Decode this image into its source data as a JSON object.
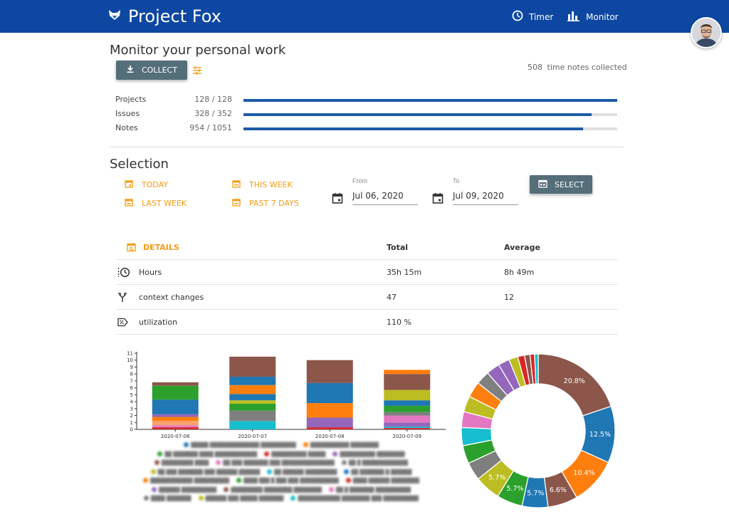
{
  "app": {
    "title": "Project Fox"
  },
  "nav": {
    "timer": "Timer",
    "monitor": "Monitor"
  },
  "monitor": {
    "heading": "Monitor your personal work",
    "collect_label": "COLLECT",
    "collected_count": "508",
    "collected_text": "time notes collected",
    "progress": [
      {
        "label": "Projects",
        "count": "128 / 128",
        "fraction": 1.0
      },
      {
        "label": "Issues",
        "count": "328 / 352",
        "fraction": 0.932
      },
      {
        "label": "Notes",
        "count": "954 / 1051",
        "fraction": 0.908
      }
    ]
  },
  "selection": {
    "heading": "Selection",
    "today": "TODAY",
    "last_week": "LAST WEEK",
    "this_week": "THIS WEEK",
    "past_7_days": "PAST 7 DAYS",
    "from_label": "From",
    "from_value": "Jul 06, 2020",
    "to_label": "To",
    "to_value": "Jul 09, 2020",
    "select_label": "SELECT"
  },
  "details": {
    "header_label": "DETAILS",
    "total_header": "Total",
    "average_header": "Average",
    "rows": [
      {
        "name": "Hours",
        "total": "35h 15m",
        "average": "8h 49m"
      },
      {
        "name": "context changes",
        "total": "47",
        "average": "12"
      },
      {
        "name": "utilization",
        "total": "110 %",
        "average": ""
      }
    ]
  },
  "colors": {
    "brand": "#0d47a1",
    "accent": "#f39c12",
    "button": "#546e7a",
    "progress": "#1e5ba8"
  },
  "chart_data": [
    {
      "type": "bar",
      "stacked": true,
      "categories": [
        "2020-07-06",
        "2020-07-07",
        "2020-07-08",
        "2020-07-09"
      ],
      "ylim": [
        0,
        11
      ],
      "yticks": [
        "0",
        "1",
        "2",
        "3",
        "4",
        "5",
        "6",
        "7",
        "8",
        "9",
        "10",
        "11"
      ],
      "series": [
        {
          "color": "#d62728",
          "values": [
            0.3,
            0,
            0.3,
            0.2
          ]
        },
        {
          "color": "#e377c2",
          "values": [
            0.3,
            0,
            0,
            0
          ]
        },
        {
          "color": "#17becf",
          "values": [
            0,
            1.2,
            0,
            0.2
          ]
        },
        {
          "color": "#f8a36f",
          "values": [
            0.6,
            0,
            0,
            0
          ]
        },
        {
          "color": "#ff7f0e",
          "values": [
            0.6,
            0,
            0,
            0
          ]
        },
        {
          "color": "#9467bd",
          "values": [
            0.4,
            0,
            1.4,
            0.6
          ]
        },
        {
          "color": "#e377c2",
          "values": [
            0,
            0,
            0,
            1.0
          ]
        },
        {
          "color": "#7f7f7f",
          "values": [
            0,
            1.5,
            0,
            0.5
          ]
        },
        {
          "color": "#2ca02c",
          "values": [
            0,
            1.0,
            0,
            0.9
          ]
        },
        {
          "color": "#bcbd22",
          "values": [
            0,
            0.5,
            0,
            0
          ]
        },
        {
          "color": "#1f77b4",
          "values": [
            2.1,
            0.9,
            0,
            0.8
          ]
        },
        {
          "color": "#ff7f0e",
          "values": [
            0,
            1.3,
            2.1,
            0
          ]
        },
        {
          "color": "#bcbd22",
          "values": [
            0,
            0,
            0,
            1.5
          ]
        },
        {
          "color": "#2ca02c",
          "values": [
            2.0,
            0,
            0,
            0
          ]
        },
        {
          "color": "#1f77b4",
          "values": [
            0,
            1.2,
            2.9,
            0
          ]
        },
        {
          "color": "#8c564b",
          "values": [
            0.5,
            2.9,
            3.3,
            2.3
          ]
        },
        {
          "color": "#ff7f0e",
          "values": [
            0,
            0,
            0,
            0.6
          ]
        }
      ]
    },
    {
      "type": "pie",
      "donut": true,
      "slices": [
        {
          "value": 20.8,
          "label": "20.8%",
          "color": "#8c564b"
        },
        {
          "value": 12.5,
          "label": "12.5%",
          "color": "#1f77b4"
        },
        {
          "value": 10.4,
          "label": "10.4%",
          "color": "#ff7f0e"
        },
        {
          "value": 6.6,
          "label": "6.6%",
          "color": "#8c564b"
        },
        {
          "value": 5.7,
          "label": "5.7%",
          "color": "#1f77b4"
        },
        {
          "value": 5.7,
          "label": "5.7%",
          "color": "#2ca02c"
        },
        {
          "value": 5.7,
          "label": "5.7%",
          "color": "#bcbd22"
        },
        {
          "value": 4.0,
          "label": "",
          "color": "#7f7f7f"
        },
        {
          "value": 4.0,
          "label": "",
          "color": "#2ca02c"
        },
        {
          "value": 4.0,
          "label": "",
          "color": "#17becf"
        },
        {
          "value": 3.5,
          "label": "",
          "color": "#e377c2"
        },
        {
          "value": 3.5,
          "label": "",
          "color": "#bcbd22"
        },
        {
          "value": 3.5,
          "label": "",
          "color": "#ff7f0e"
        },
        {
          "value": 3.0,
          "label": "",
          "color": "#7f7f7f"
        },
        {
          "value": 3.0,
          "label": "",
          "color": "#9467bd"
        },
        {
          "value": 2.5,
          "label": "",
          "color": "#9467bd"
        },
        {
          "value": 2.0,
          "label": "",
          "color": "#bcbd22"
        },
        {
          "value": 1.5,
          "label": "",
          "color": "#d62728"
        },
        {
          "value": 1.2,
          "label": "",
          "color": "#8c564b"
        },
        {
          "value": 1.0,
          "label": "",
          "color": "#d62728"
        },
        {
          "value": 0.8,
          "label": "",
          "color": "#17becf"
        }
      ]
    }
  ]
}
